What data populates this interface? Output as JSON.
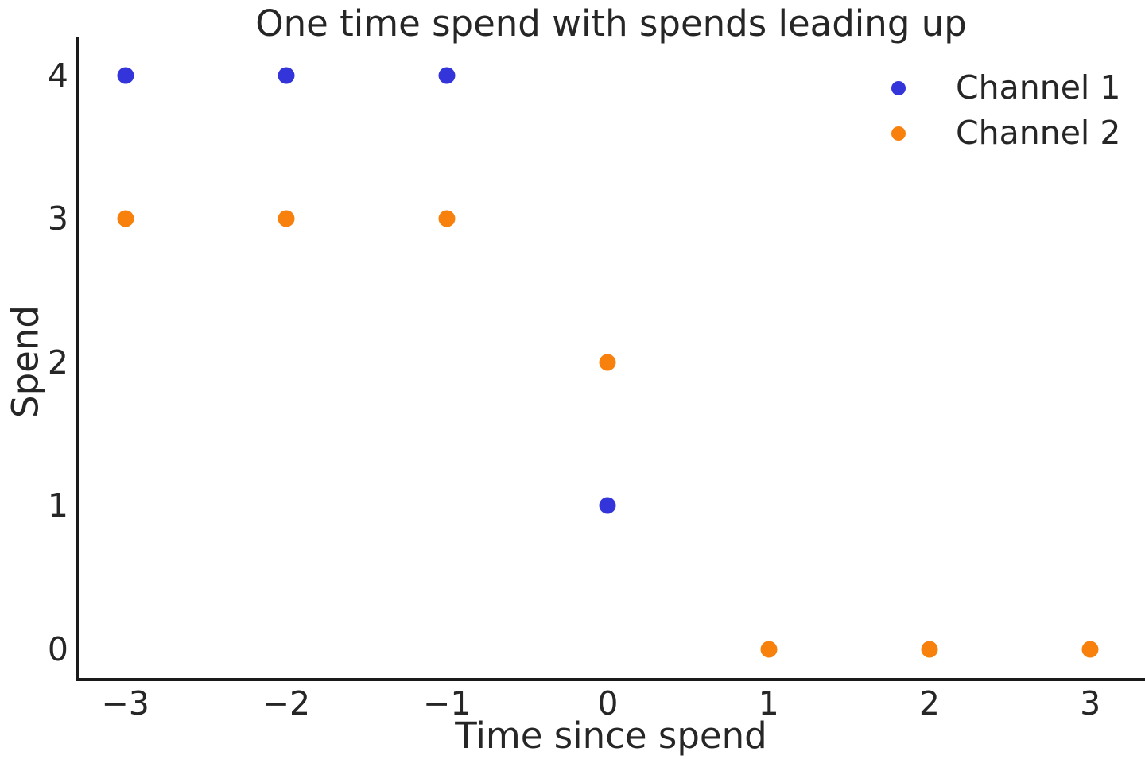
{
  "chart_data": {
    "type": "scatter",
    "title": "One time spend with spends leading up",
    "xlabel": "Time since spend",
    "ylabel": "Spend",
    "xticks": [
      -3,
      -2,
      -1,
      0,
      1,
      2,
      3
    ],
    "yticks": [
      0,
      1,
      2,
      3,
      4
    ],
    "xlim": [
      -3.3,
      3.34
    ],
    "ylim": [
      -0.2,
      4.27
    ],
    "grid": false,
    "legend_position": "upper right",
    "legend_frame": false,
    "background_color": "#ffffff",
    "text_color": "#262626",
    "spine_color": "#1a1a1a",
    "marker_style": "circle",
    "series": [
      {
        "name": "Channel 1",
        "color": "#3434db",
        "points": [
          [
            -3,
            4
          ],
          [
            -2,
            4
          ],
          [
            -1,
            4
          ],
          [
            0,
            1
          ]
        ]
      },
      {
        "name": "Channel 2",
        "color": "#f8810e",
        "points": [
          [
            -3,
            3
          ],
          [
            -2,
            3
          ],
          [
            -1,
            3
          ],
          [
            0,
            2
          ],
          [
            1,
            0
          ],
          [
            2,
            0
          ],
          [
            3,
            0
          ]
        ]
      }
    ]
  }
}
